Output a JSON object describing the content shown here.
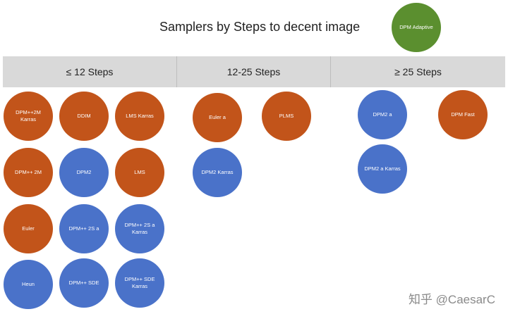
{
  "title": "Samplers by Steps to decent image",
  "legend": {
    "label": "DPM Adaptive",
    "color": "#5b8f2f"
  },
  "columns": [
    {
      "label": "≤ 12 Steps"
    },
    {
      "label": "12-25 Steps"
    },
    {
      "label": "≥ 25 Steps"
    }
  ],
  "samplers": [
    {
      "label": "DPM++2M Karras",
      "color": "#c2541a"
    },
    {
      "label": "DDIM",
      "color": "#c2541a"
    },
    {
      "label": "LMS Karras",
      "color": "#c2541a"
    },
    {
      "label": "DPM++ 2M",
      "color": "#c2541a"
    },
    {
      "label": "DPM2",
      "color": "#4a72c9"
    },
    {
      "label": "LMS",
      "color": "#c2541a"
    },
    {
      "label": "Euler",
      "color": "#c2541a"
    },
    {
      "label": "DPM++ 2S a",
      "color": "#4a72c9"
    },
    {
      "label": "DPM++ 2S a Karras",
      "color": "#4a72c9"
    },
    {
      "label": "Heun",
      "color": "#4a72c9"
    },
    {
      "label": "DPM++ SDE",
      "color": "#4a72c9"
    },
    {
      "label": "DPM++ SDE Karras",
      "color": "#4a72c9"
    },
    {
      "label": "Euler a",
      "color": "#c2541a"
    },
    {
      "label": "PLMS",
      "color": "#c2541a"
    },
    {
      "label": "DPM2 Karras",
      "color": "#4a72c9"
    },
    {
      "label": "DPM2 a",
      "color": "#4a72c9"
    },
    {
      "label": "DPM Fast",
      "color": "#c2541a"
    },
    {
      "label": "DPM2 a Karras",
      "color": "#4a72c9"
    }
  ],
  "watermark": "知乎 @CaesarC"
}
